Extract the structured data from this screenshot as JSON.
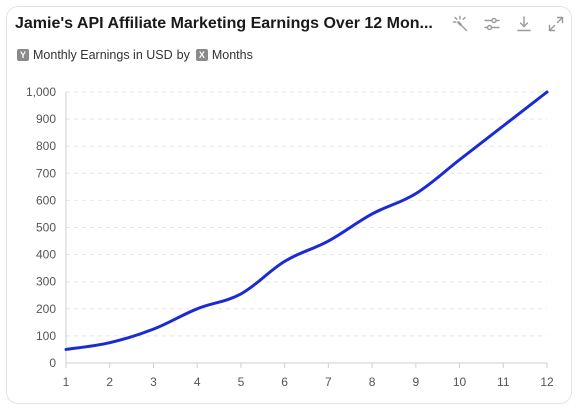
{
  "title": "Jamie's API Affiliate Marketing Earnings Over 12 Mon...",
  "legend": {
    "y_badge": "Y",
    "y_label": "Monthly Earnings in USD",
    "by": "by",
    "x_badge": "X",
    "x_label": "Months"
  },
  "toolbar": {
    "icons": [
      "magic-icon",
      "sliders-icon",
      "download-icon",
      "expand-icon"
    ]
  },
  "colors": {
    "line": "#1a2bd6",
    "grid": "#e6e6e6",
    "axis": "#cfcfcf",
    "icon": "#9a9a9a"
  },
  "chart_data": {
    "type": "line",
    "x": [
      1,
      2,
      3,
      4,
      5,
      6,
      7,
      8,
      9,
      10,
      11,
      12
    ],
    "series": [
      {
        "values": [
          50,
          75,
          125,
          200,
          255,
          375,
          450,
          550,
          625,
          750,
          875,
          1000
        ]
      }
    ],
    "xlabel": "",
    "ylabel": "",
    "ylim": [
      0,
      1000
    ],
    "yticks": [
      0,
      100,
      200,
      300,
      400,
      500,
      600,
      700,
      800,
      900,
      1000
    ],
    "ytick_labels": [
      "0",
      "100",
      "200",
      "300",
      "400",
      "500",
      "600",
      "700",
      "800",
      "900",
      "1,000"
    ],
    "grid": true
  }
}
